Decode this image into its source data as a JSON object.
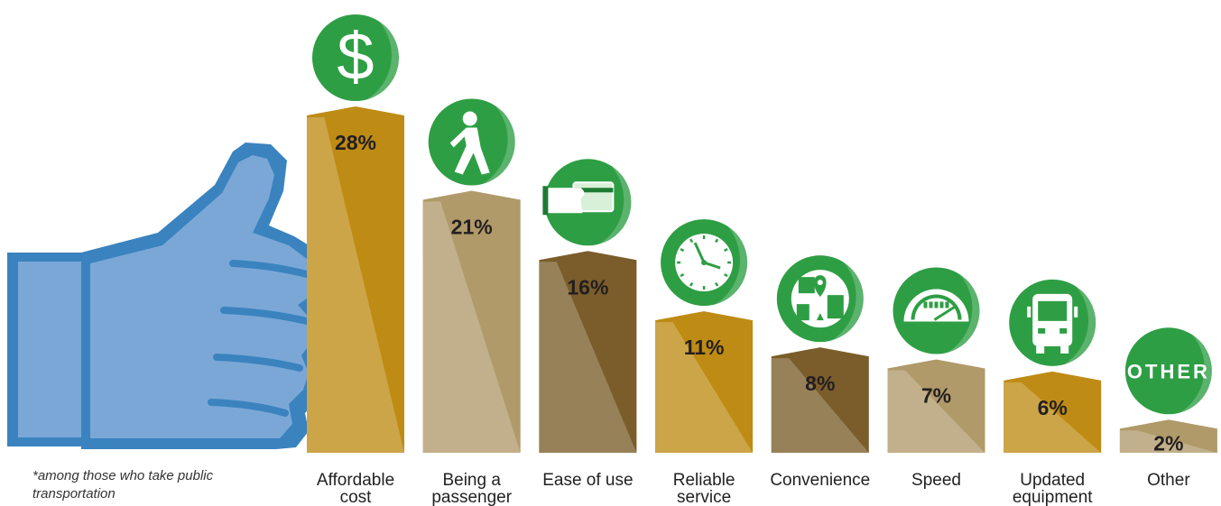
{
  "chart_data": {
    "type": "bar",
    "categories": [
      [
        "Affordable",
        "cost"
      ],
      [
        "Being a",
        "passenger"
      ],
      [
        "Ease of use"
      ],
      [
        "Reliable",
        "service"
      ],
      [
        "Convenience"
      ],
      [
        "Speed"
      ],
      [
        "Updated",
        "equipment"
      ],
      [
        "Other"
      ]
    ],
    "values": [
      28,
      21,
      16,
      11,
      8,
      7,
      6,
      2
    ],
    "value_labels": [
      "28%",
      "21%",
      "16%",
      "11%",
      "8%",
      "7%",
      "6%",
      "2%"
    ],
    "icons": [
      "dollar-icon",
      "pedestrian-icon",
      "card-icon",
      "clock-icon",
      "map-pin-icon",
      "speedometer-icon",
      "bus-icon",
      "other-badge-icon"
    ],
    "other_badge_text": "OTHER",
    "bar_colors": [
      "#be8b14",
      "#b09a6a",
      "#7a5d2a",
      "#be8b14",
      "#7a5d2a",
      "#b09a6a",
      "#be8b14",
      "#b09a6a"
    ],
    "icon_color": "#2e9e44",
    "hand_color": "#7ba7d6",
    "hand_outline_color": "#3a83bf",
    "xlabel": "",
    "ylabel": "",
    "ylim": [
      0,
      28
    ]
  },
  "footnote": "*among those who take public transportation"
}
